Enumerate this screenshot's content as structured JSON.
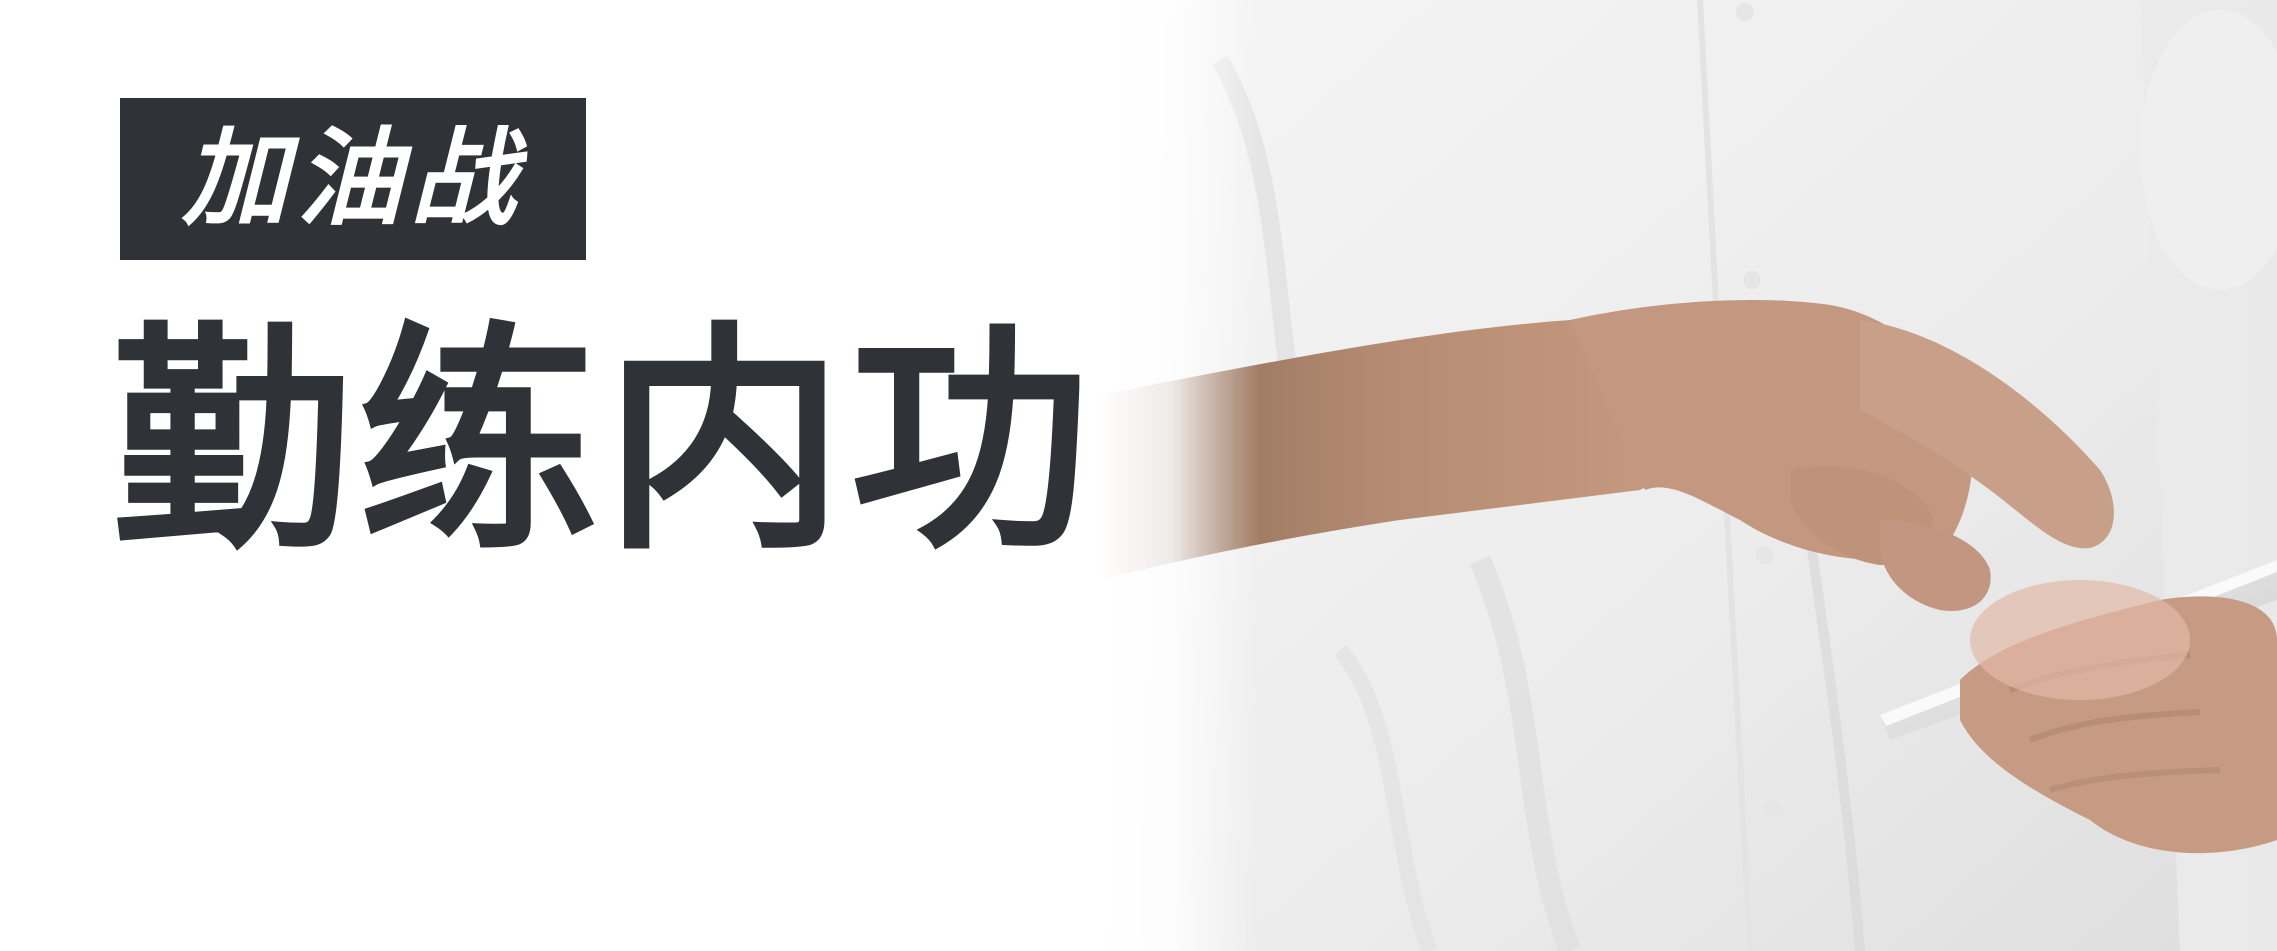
{
  "banner": {
    "tag_text": "加油战",
    "headline": "勤练内功"
  },
  "colors": {
    "text_dark": "#2f3337",
    "background": "#ffffff",
    "shirt": "#f2f2f2",
    "skin": "#b48a72",
    "phone": "#e6e6e6"
  },
  "icons": {
    "photo": "person-using-smartphone-photo"
  }
}
